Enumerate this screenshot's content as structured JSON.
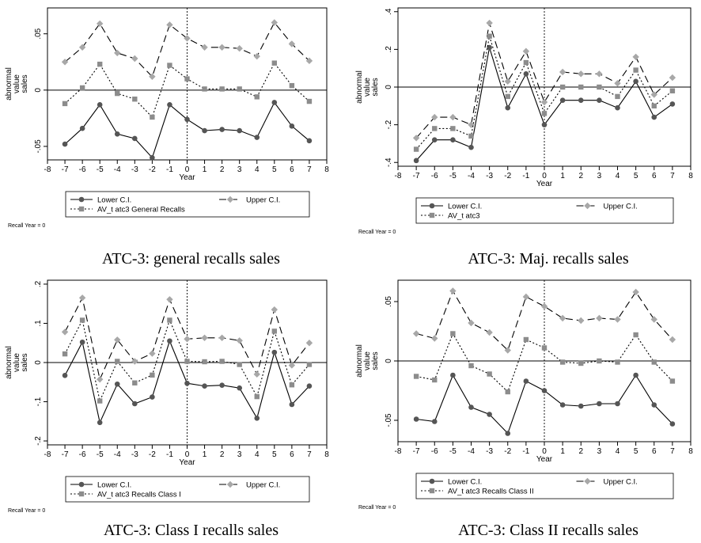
{
  "figure": {
    "x_ticks": [
      -8,
      -7,
      -6,
      -5,
      -4,
      -3,
      -2,
      -1,
      0,
      1,
      2,
      3,
      4,
      5,
      6,
      7,
      8
    ],
    "recall_note": "Recall Year = 0",
    "colors": {
      "line": "#000000",
      "lower_marker": "#555555",
      "upper_marker": "#a8a8a8",
      "av_marker": "#8c8c8c"
    }
  },
  "chart_data": [
    {
      "type": "line",
      "caption": "ATC-3: general recalls sales",
      "xlabel": "Year",
      "ylabel": "abnormal value sales",
      "xlim": [
        -8,
        8
      ],
      "ylim": [
        -0.062,
        0.073
      ],
      "yticks": [
        -0.05,
        0,
        0.05
      ],
      "ytick_labels": [
        "-.05",
        "0",
        ".05"
      ],
      "x": [
        -7,
        -6,
        -5,
        -4,
        -3,
        -2,
        -1,
        0,
        1,
        2,
        3,
        4,
        5,
        6,
        7
      ],
      "series": [
        {
          "name": "Lower C.I.",
          "values": [
            -0.048,
            -0.034,
            -0.013,
            -0.039,
            -0.043,
            -0.06,
            -0.013,
            -0.026,
            -0.036,
            -0.035,
            -0.036,
            -0.042,
            -0.011,
            -0.032,
            -0.045
          ]
        },
        {
          "name": "Upper C.I.",
          "values": [
            0.025,
            0.038,
            0.059,
            0.033,
            0.028,
            0.012,
            0.058,
            0.046,
            0.038,
            0.038,
            0.037,
            0.03,
            0.06,
            0.041,
            0.026
          ]
        },
        {
          "name": "AV_t atc3 General Recalls",
          "values": [
            -0.012,
            0.002,
            0.023,
            -0.003,
            -0.008,
            -0.024,
            0.022,
            0.01,
            0.001,
            0.001,
            0.001,
            -0.006,
            0.024,
            0.004,
            -0.01
          ]
        }
      ],
      "legend_rows": [
        [
          "Lower C.I.",
          "Upper C.I."
        ],
        [
          "AV_t atc3 General Recalls"
        ]
      ]
    },
    {
      "type": "line",
      "caption": "ATC-3: Maj. recalls sales",
      "xlabel": "Year",
      "ylabel": "abnormal value sales",
      "xlim": [
        -8,
        8
      ],
      "ylim": [
        -0.42,
        0.42
      ],
      "yticks": [
        -0.4,
        -0.2,
        0,
        0.2,
        0.4
      ],
      "ytick_labels": [
        "-.4",
        "-.2",
        "0",
        ".2",
        ".4"
      ],
      "x": [
        -7,
        -6,
        -5,
        -4,
        -3,
        -2,
        -1,
        0,
        1,
        2,
        3,
        4,
        5,
        6,
        7
      ],
      "series": [
        {
          "name": "Lower C.I.",
          "values": [
            -0.39,
            -0.28,
            -0.28,
            -0.32,
            0.21,
            -0.11,
            0.07,
            -0.2,
            -0.07,
            -0.07,
            -0.07,
            -0.11,
            0.03,
            -0.16,
            -0.09
          ]
        },
        {
          "name": "Upper C.I.",
          "values": [
            -0.27,
            -0.16,
            -0.16,
            -0.2,
            0.34,
            0.03,
            0.19,
            -0.08,
            0.08,
            0.07,
            0.07,
            0.02,
            0.16,
            -0.04,
            0.05
          ]
        },
        {
          "name": "AV_t atc3",
          "values": [
            -0.33,
            -0.22,
            -0.22,
            -0.26,
            0.27,
            -0.05,
            0.13,
            -0.14,
            0.0,
            0.0,
            0.0,
            -0.05,
            0.09,
            -0.1,
            -0.02
          ]
        }
      ],
      "legend_rows": [
        [
          "Lower C.I.",
          "Upper C.I."
        ],
        [
          "AV_t atc3"
        ]
      ]
    },
    {
      "type": "line",
      "caption": "ATC-3: Class I recalls sales",
      "xlabel": "Year",
      "ylabel": "abnormal value sales",
      "xlim": [
        -8,
        8
      ],
      "ylim": [
        -0.21,
        0.21
      ],
      "yticks": [
        -0.2,
        -0.1,
        0,
        0.1,
        0.2
      ],
      "ytick_labels": [
        "-.2",
        "-.1",
        "0",
        ".1",
        ".2"
      ],
      "x": [
        -7,
        -6,
        -5,
        -4,
        -3,
        -2,
        -1,
        0,
        1,
        2,
        3,
        4,
        5,
        6,
        7
      ],
      "series": [
        {
          "name": "Lower C.I.",
          "values": [
            -0.033,
            0.052,
            -0.153,
            -0.055,
            -0.105,
            -0.088,
            0.055,
            -0.053,
            -0.06,
            -0.058,
            -0.065,
            -0.142,
            0.026,
            -0.107,
            -0.06
          ]
        },
        {
          "name": "Upper C.I.",
          "values": [
            0.078,
            0.165,
            -0.043,
            0.058,
            0.003,
            0.023,
            0.161,
            0.06,
            0.063,
            0.063,
            0.056,
            -0.03,
            0.135,
            -0.007,
            0.05
          ]
        },
        {
          "name": "AV_t atc3 Recalls Class I",
          "values": [
            0.022,
            0.108,
            -0.098,
            0.003,
            -0.052,
            -0.032,
            0.108,
            0.003,
            0.002,
            0.003,
            -0.005,
            -0.087,
            0.08,
            -0.057,
            -0.005
          ]
        }
      ],
      "legend_rows": [
        [
          "Lower C.I.",
          "Upper C.I."
        ],
        [
          "AV_t atc3 Recalls Class I"
        ]
      ]
    },
    {
      "type": "line",
      "caption": "ATC-3: Class II recalls sales",
      "xlabel": "Year",
      "ylabel": "abnormal value sales",
      "xlim": [
        -8,
        8
      ],
      "ylim": [
        -0.068,
        0.068
      ],
      "yticks": [
        -0.05,
        0,
        0.05
      ],
      "ytick_labels": [
        "-.05",
        "0",
        ".05"
      ],
      "x": [
        -7,
        -6,
        -5,
        -4,
        -3,
        -2,
        -1,
        0,
        1,
        2,
        3,
        4,
        5,
        6,
        7
      ],
      "series": [
        {
          "name": "Lower C.I.",
          "values": [
            -0.049,
            -0.051,
            -0.012,
            -0.039,
            -0.045,
            -0.061,
            -0.017,
            -0.025,
            -0.037,
            -0.038,
            -0.036,
            -0.036,
            -0.012,
            -0.037,
            -0.053
          ]
        },
        {
          "name": "Upper C.I.",
          "values": [
            0.023,
            0.019,
            0.059,
            0.032,
            0.024,
            0.009,
            0.054,
            0.046,
            0.036,
            0.034,
            0.036,
            0.035,
            0.058,
            0.035,
            0.018
          ]
        },
        {
          "name": "AV_t atc3 Recalls Class II",
          "values": [
            -0.013,
            -0.016,
            0.023,
            -0.004,
            -0.011,
            -0.026,
            0.018,
            0.011,
            -0.001,
            -0.002,
            0.0,
            -0.001,
            0.022,
            -0.001,
            -0.017
          ]
        }
      ],
      "legend_rows": [
        [
          "Lower C.I.",
          "Upper C.I."
        ],
        [
          "AV_t atc3 Recalls Class II"
        ]
      ]
    }
  ]
}
